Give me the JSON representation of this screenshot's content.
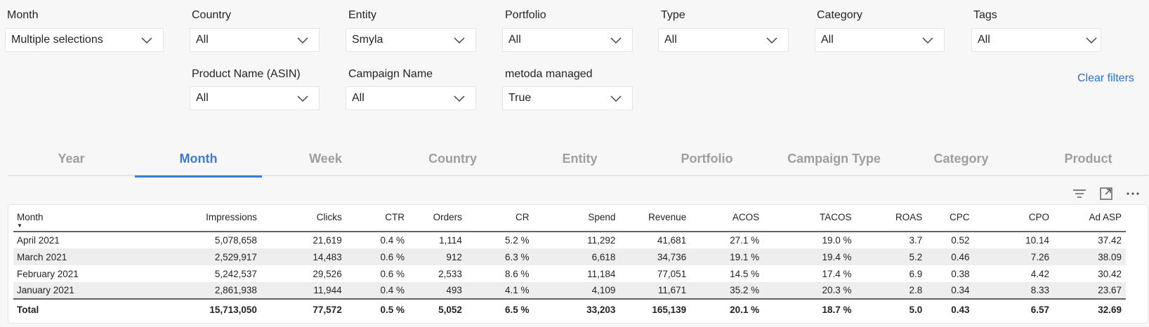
{
  "filters": {
    "row1": [
      {
        "label": "Month",
        "value": "Multiple selections"
      },
      {
        "label": "Country",
        "value": "All"
      },
      {
        "label": "Entity",
        "value": "Smyla"
      },
      {
        "label": "Portfolio",
        "value": "All"
      },
      {
        "label": "Type",
        "value": "All"
      },
      {
        "label": "Category",
        "value": "All"
      },
      {
        "label": "Tags",
        "value": "All"
      }
    ],
    "row2": [
      {
        "label": "Product Name (ASIN)",
        "value": "All"
      },
      {
        "label": "Campaign Name",
        "value": "All"
      },
      {
        "label": "metoda managed",
        "value": "True"
      }
    ],
    "clear_label": "Clear filters",
    "chevron_icon": "chevron-down-icon"
  },
  "tabs": [
    {
      "label": "Year",
      "active": false
    },
    {
      "label": "Month",
      "active": true
    },
    {
      "label": "Week",
      "active": false
    },
    {
      "label": "Country",
      "active": false
    },
    {
      "label": "Entity",
      "active": false
    },
    {
      "label": "Portfolio",
      "active": false
    },
    {
      "label": "Campaign Type",
      "active": false
    },
    {
      "label": "Category",
      "active": false
    },
    {
      "label": "Product",
      "active": false
    }
  ],
  "visual_header_icons": [
    "filter-icon",
    "focus-mode-icon",
    "more-options-icon"
  ],
  "table": {
    "columns": [
      "Month",
      "Impressions",
      "Clicks",
      "CTR",
      "Orders",
      "CR",
      "Spend",
      "Revenue",
      "ACOS",
      "TACOS",
      "ROAS",
      "CPC",
      "CPO",
      "Ad ASP"
    ],
    "rows": [
      [
        "April 2021",
        "5,078,658",
        "21,619",
        "0.4 %",
        "1,114",
        "5.2 %",
        "11,292",
        "41,681",
        "27.1 %",
        "19.0 %",
        "3.7",
        "0.52",
        "10.14",
        "37.42"
      ],
      [
        "March 2021",
        "2,529,917",
        "14,483",
        "0.6 %",
        "912",
        "6.3 %",
        "6,618",
        "34,736",
        "19.1 %",
        "19.4 %",
        "5.2",
        "0.46",
        "7.26",
        "38.09"
      ],
      [
        "February 2021",
        "5,242,537",
        "29,526",
        "0.6 %",
        "2,533",
        "8.6 %",
        "11,184",
        "77,051",
        "14.5 %",
        "17.4 %",
        "6.9",
        "0.38",
        "4.42",
        "30.42"
      ],
      [
        "January 2021",
        "2,861,938",
        "11,944",
        "0.4 %",
        "493",
        "4.1 %",
        "4,109",
        "11,671",
        "35.2 %",
        "20.3 %",
        "2.8",
        "0.34",
        "8.33",
        "23.67"
      ]
    ],
    "total": [
      "Total",
      "15,713,050",
      "77,572",
      "0.5 %",
      "5,052",
      "6.5 %",
      "33,203",
      "165,139",
      "20.1 %",
      "18.7 %",
      "5.0",
      "0.43",
      "6.57",
      "32.69"
    ],
    "sort_indicator": "▼"
  },
  "colors": {
    "accent": "#3a7bd5",
    "link": "#2a6fc9",
    "inactive_tab": "#9e9e9e",
    "background": "#f7f7f7"
  }
}
